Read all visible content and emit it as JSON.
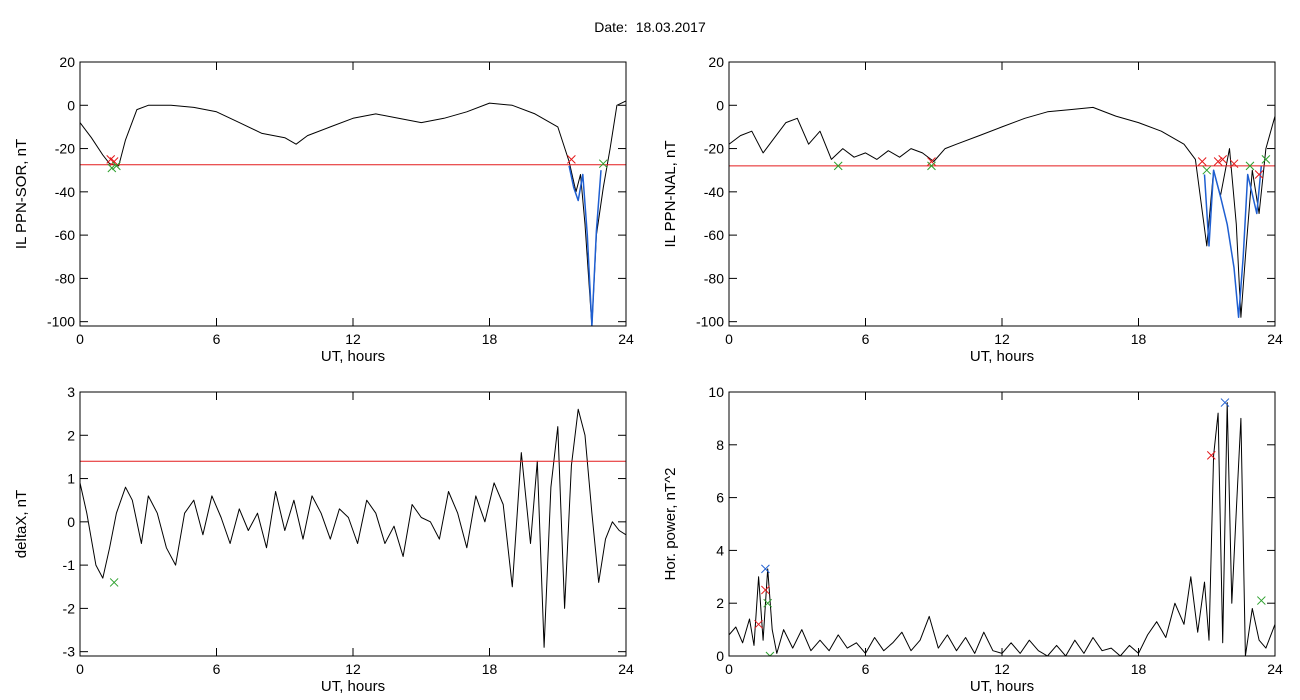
{
  "header": {
    "date_label": "Date:",
    "date_value": "18.03.2017"
  },
  "colors": {
    "curve": "#000000",
    "threshold": "#e41a1c",
    "highlight": "#1f5fd1",
    "red_marker": "#e41a1c",
    "green_marker": "#2ca02c",
    "blue_marker": "#1f5fd1"
  },
  "chart_data": [
    {
      "id": "sor",
      "type": "line",
      "title": "",
      "xlabel": "UT, hours",
      "ylabel": "IL PPN-SOR, nT",
      "xlim": [
        0,
        24
      ],
      "ylim": [
        -102,
        20
      ],
      "xticks": [
        0,
        6,
        12,
        18,
        24
      ],
      "yticks": [
        20,
        0,
        -20,
        -40,
        -60,
        -80,
        -100
      ],
      "grid": false,
      "series": [
        {
          "role": "curve",
          "x": [
            0,
            0.5,
            1,
            1.3,
            1.7,
            2,
            2.5,
            3,
            4,
            5,
            6,
            7,
            8,
            9,
            9.5,
            10,
            11,
            12,
            13,
            14,
            15,
            16,
            17,
            18,
            19,
            20,
            21,
            21.5,
            21.8,
            22,
            22.2,
            22.5,
            22.7,
            23,
            23.3,
            23.6,
            24
          ],
          "values": [
            -8,
            -15,
            -23,
            -27,
            -28,
            -16,
            -2,
            0,
            0,
            -1,
            -3,
            -8,
            -13,
            -15,
            -18,
            -14,
            -10,
            -6,
            -4,
            -6,
            -8,
            -6,
            -3,
            1,
            0,
            -4,
            -10,
            -26,
            -40,
            -32,
            -55,
            -102,
            -60,
            -38,
            -20,
            0,
            2
          ]
        },
        {
          "role": "highlight",
          "x": [
            21.5,
            21.7,
            21.9,
            22.1,
            22.3,
            22.5,
            22.7,
            22.9
          ],
          "values": [
            -28,
            -38,
            -44,
            -32,
            -60,
            -102,
            -58,
            -30
          ]
        },
        {
          "role": "threshold",
          "x": [
            0,
            24
          ],
          "values": [
            -27.5,
            -27.5
          ]
        }
      ],
      "markers": [
        {
          "color": "red",
          "x": 1.35,
          "y": -25
        },
        {
          "color": "red",
          "x": 1.5,
          "y": -26
        },
        {
          "color": "green",
          "x": 1.4,
          "y": -29
        },
        {
          "color": "green",
          "x": 1.6,
          "y": -28
        },
        {
          "color": "red",
          "x": 21.6,
          "y": -25
        },
        {
          "color": "green",
          "x": 23.0,
          "y": -27
        }
      ]
    },
    {
      "id": "nal",
      "type": "line",
      "title": "",
      "xlabel": "UT, hours",
      "ylabel": "IL PPN-NAL, nT",
      "xlim": [
        0,
        24
      ],
      "ylim": [
        -102,
        20
      ],
      "xticks": [
        0,
        6,
        12,
        18,
        24
      ],
      "yticks": [
        20,
        0,
        -20,
        -40,
        -60,
        -80,
        -100
      ],
      "grid": false,
      "series": [
        {
          "role": "curve",
          "x": [
            0,
            0.5,
            1,
            1.5,
            2,
            2.5,
            3,
            3.5,
            4,
            4.5,
            5,
            5.5,
            6,
            6.5,
            7,
            7.5,
            8,
            8.5,
            9,
            9.5,
            10,
            11,
            12,
            13,
            14,
            15,
            16,
            17,
            18,
            19,
            20,
            20.5,
            21,
            21.3,
            21.6,
            22,
            22.3,
            22.5,
            22.7,
            23,
            23.3,
            23.6,
            24
          ],
          "values": [
            -18,
            -14,
            -12,
            -22,
            -15,
            -8,
            -6,
            -18,
            -12,
            -25,
            -20,
            -24,
            -22,
            -25,
            -21,
            -24,
            -20,
            -22,
            -26,
            -20,
            -18,
            -14,
            -10,
            -6,
            -3,
            -2,
            -1,
            -5,
            -8,
            -12,
            -18,
            -25,
            -65,
            -30,
            -42,
            -20,
            -55,
            -98,
            -70,
            -30,
            -50,
            -20,
            -5
          ]
        },
        {
          "role": "highlight",
          "x": [
            20.9,
            21.1,
            21.3,
            21.6,
            21.9,
            22.2,
            22.4,
            22.6,
            22.8,
            23.2,
            23.4
          ],
          "values": [
            -32,
            -65,
            -30,
            -42,
            -55,
            -75,
            -98,
            -70,
            -32,
            -50,
            -28
          ]
        },
        {
          "role": "threshold",
          "x": [
            0,
            24
          ],
          "values": [
            -28,
            -28
          ]
        }
      ],
      "markers": [
        {
          "color": "green",
          "x": 4.8,
          "y": -28
        },
        {
          "color": "red",
          "x": 8.9,
          "y": -26
        },
        {
          "color": "green",
          "x": 8.9,
          "y": -28
        },
        {
          "color": "red",
          "x": 20.8,
          "y": -26
        },
        {
          "color": "green",
          "x": 21.0,
          "y": -30
        },
        {
          "color": "red",
          "x": 21.5,
          "y": -26
        },
        {
          "color": "red",
          "x": 21.7,
          "y": -25
        },
        {
          "color": "red",
          "x": 22.2,
          "y": -27
        },
        {
          "color": "green",
          "x": 22.9,
          "y": -28
        },
        {
          "color": "red",
          "x": 23.3,
          "y": -32
        },
        {
          "color": "green",
          "x": 23.6,
          "y": -25
        }
      ]
    },
    {
      "id": "deltax",
      "type": "line",
      "title": "",
      "xlabel": "UT, hours",
      "ylabel": "deltaX, nT",
      "xlim": [
        0,
        24
      ],
      "ylim": [
        -3.1,
        3
      ],
      "xticks": [
        0,
        6,
        12,
        18,
        24
      ],
      "yticks": [
        3,
        2,
        1,
        0,
        -1,
        -2,
        -3
      ],
      "grid": false,
      "series": [
        {
          "role": "curve",
          "x": [
            0,
            0.3,
            0.7,
            1,
            1.3,
            1.6,
            2,
            2.3,
            2.7,
            3,
            3.4,
            3.8,
            4.2,
            4.6,
            5,
            5.4,
            5.8,
            6.2,
            6.6,
            7,
            7.4,
            7.8,
            8.2,
            8.6,
            9,
            9.4,
            9.8,
            10.2,
            10.6,
            11,
            11.4,
            11.8,
            12.2,
            12.6,
            13,
            13.4,
            13.8,
            14.2,
            14.6,
            15,
            15.4,
            15.8,
            16.2,
            16.6,
            17,
            17.4,
            17.8,
            18.2,
            18.6,
            19,
            19.4,
            19.8,
            20.1,
            20.4,
            20.7,
            21,
            21.3,
            21.6,
            21.9,
            22.2,
            22.5,
            22.8,
            23.1,
            23.4,
            23.7,
            24
          ],
          "values": [
            0.9,
            0.2,
            -1.0,
            -1.3,
            -0.6,
            0.2,
            0.8,
            0.5,
            -0.5,
            0.6,
            0.2,
            -0.6,
            -1.0,
            0.2,
            0.5,
            -0.3,
            0.6,
            0.1,
            -0.5,
            0.3,
            -0.2,
            0.2,
            -0.6,
            0.7,
            -0.2,
            0.5,
            -0.4,
            0.6,
            0.2,
            -0.4,
            0.3,
            0.1,
            -0.5,
            0.5,
            0.2,
            -0.5,
            -0.1,
            -0.8,
            0.4,
            0.1,
            0.0,
            -0.4,
            0.7,
            0.2,
            -0.6,
            0.6,
            0.0,
            0.9,
            0.4,
            -1.5,
            1.6,
            -0.5,
            1.4,
            -2.9,
            0.8,
            2.2,
            -2.0,
            1.3,
            2.6,
            2.0,
            0.2,
            -1.4,
            -0.4,
            0.0,
            -0.2,
            -0.3
          ]
        },
        {
          "role": "threshold",
          "x": [
            0,
            24
          ],
          "values": [
            1.4,
            1.4
          ]
        }
      ],
      "markers": [
        {
          "color": "green",
          "x": 1.5,
          "y": -1.4
        }
      ]
    },
    {
      "id": "power",
      "type": "line",
      "title": "",
      "xlabel": "UT, hours",
      "ylabel": "Hor. power, nT^2",
      "xlim": [
        0,
        24
      ],
      "ylim": [
        0,
        10
      ],
      "xticks": [
        0,
        6,
        12,
        18,
        24
      ],
      "yticks": [
        10,
        8,
        6,
        4,
        2,
        0
      ],
      "grid": false,
      "series": [
        {
          "role": "curve",
          "x": [
            0,
            0.3,
            0.6,
            0.9,
            1.1,
            1.3,
            1.5,
            1.7,
            1.9,
            2.1,
            2.4,
            2.8,
            3.2,
            3.6,
            4,
            4.4,
            4.8,
            5.2,
            5.6,
            6,
            6.4,
            6.8,
            7.2,
            7.6,
            8,
            8.4,
            8.8,
            9.2,
            9.6,
            10,
            10.4,
            10.8,
            11.2,
            11.6,
            12,
            12.4,
            12.8,
            13.2,
            13.6,
            14,
            14.4,
            14.8,
            15.2,
            15.6,
            16,
            16.4,
            16.8,
            17.2,
            17.6,
            18,
            18.4,
            18.8,
            19.2,
            19.6,
            20,
            20.3,
            20.6,
            20.9,
            21.1,
            21.3,
            21.5,
            21.7,
            21.9,
            22.1,
            22.3,
            22.5,
            22.7,
            23,
            23.3,
            23.6,
            24
          ],
          "values": [
            0.8,
            1.1,
            0.5,
            1.4,
            0.4,
            3.0,
            0.6,
            3.3,
            1.0,
            0.1,
            1.0,
            0.3,
            1.0,
            0.2,
            0.6,
            0.2,
            0.8,
            0.3,
            0.5,
            0.1,
            0.7,
            0.2,
            0.5,
            0.9,
            0.2,
            0.6,
            1.5,
            0.3,
            0.8,
            0.2,
            0.7,
            0.1,
            0.9,
            0.2,
            0.1,
            0.5,
            0.1,
            0.6,
            0.2,
            0.0,
            0.4,
            0.0,
            0.6,
            0.1,
            0.7,
            0.2,
            0.3,
            0.0,
            0.4,
            0.1,
            0.8,
            1.3,
            0.7,
            2.0,
            1.2,
            3.0,
            0.9,
            2.8,
            0.6,
            7.6,
            9.2,
            0.5,
            9.6,
            2.0,
            5.5,
            9.0,
            0.0,
            1.8,
            0.6,
            0.3,
            1.2
          ]
        }
      ],
      "markers": [
        {
          "color": "blue",
          "x": 1.6,
          "y": 3.3
        },
        {
          "color": "red",
          "x": 1.3,
          "y": 1.2
        },
        {
          "color": "red",
          "x": 1.6,
          "y": 2.5
        },
        {
          "color": "green",
          "x": 1.7,
          "y": 2.0
        },
        {
          "color": "green",
          "x": 1.8,
          "y": 0.0
        },
        {
          "color": "red",
          "x": 21.2,
          "y": 7.6
        },
        {
          "color": "blue",
          "x": 21.8,
          "y": 9.6
        },
        {
          "color": "green",
          "x": 23.4,
          "y": 2.1
        }
      ]
    }
  ]
}
